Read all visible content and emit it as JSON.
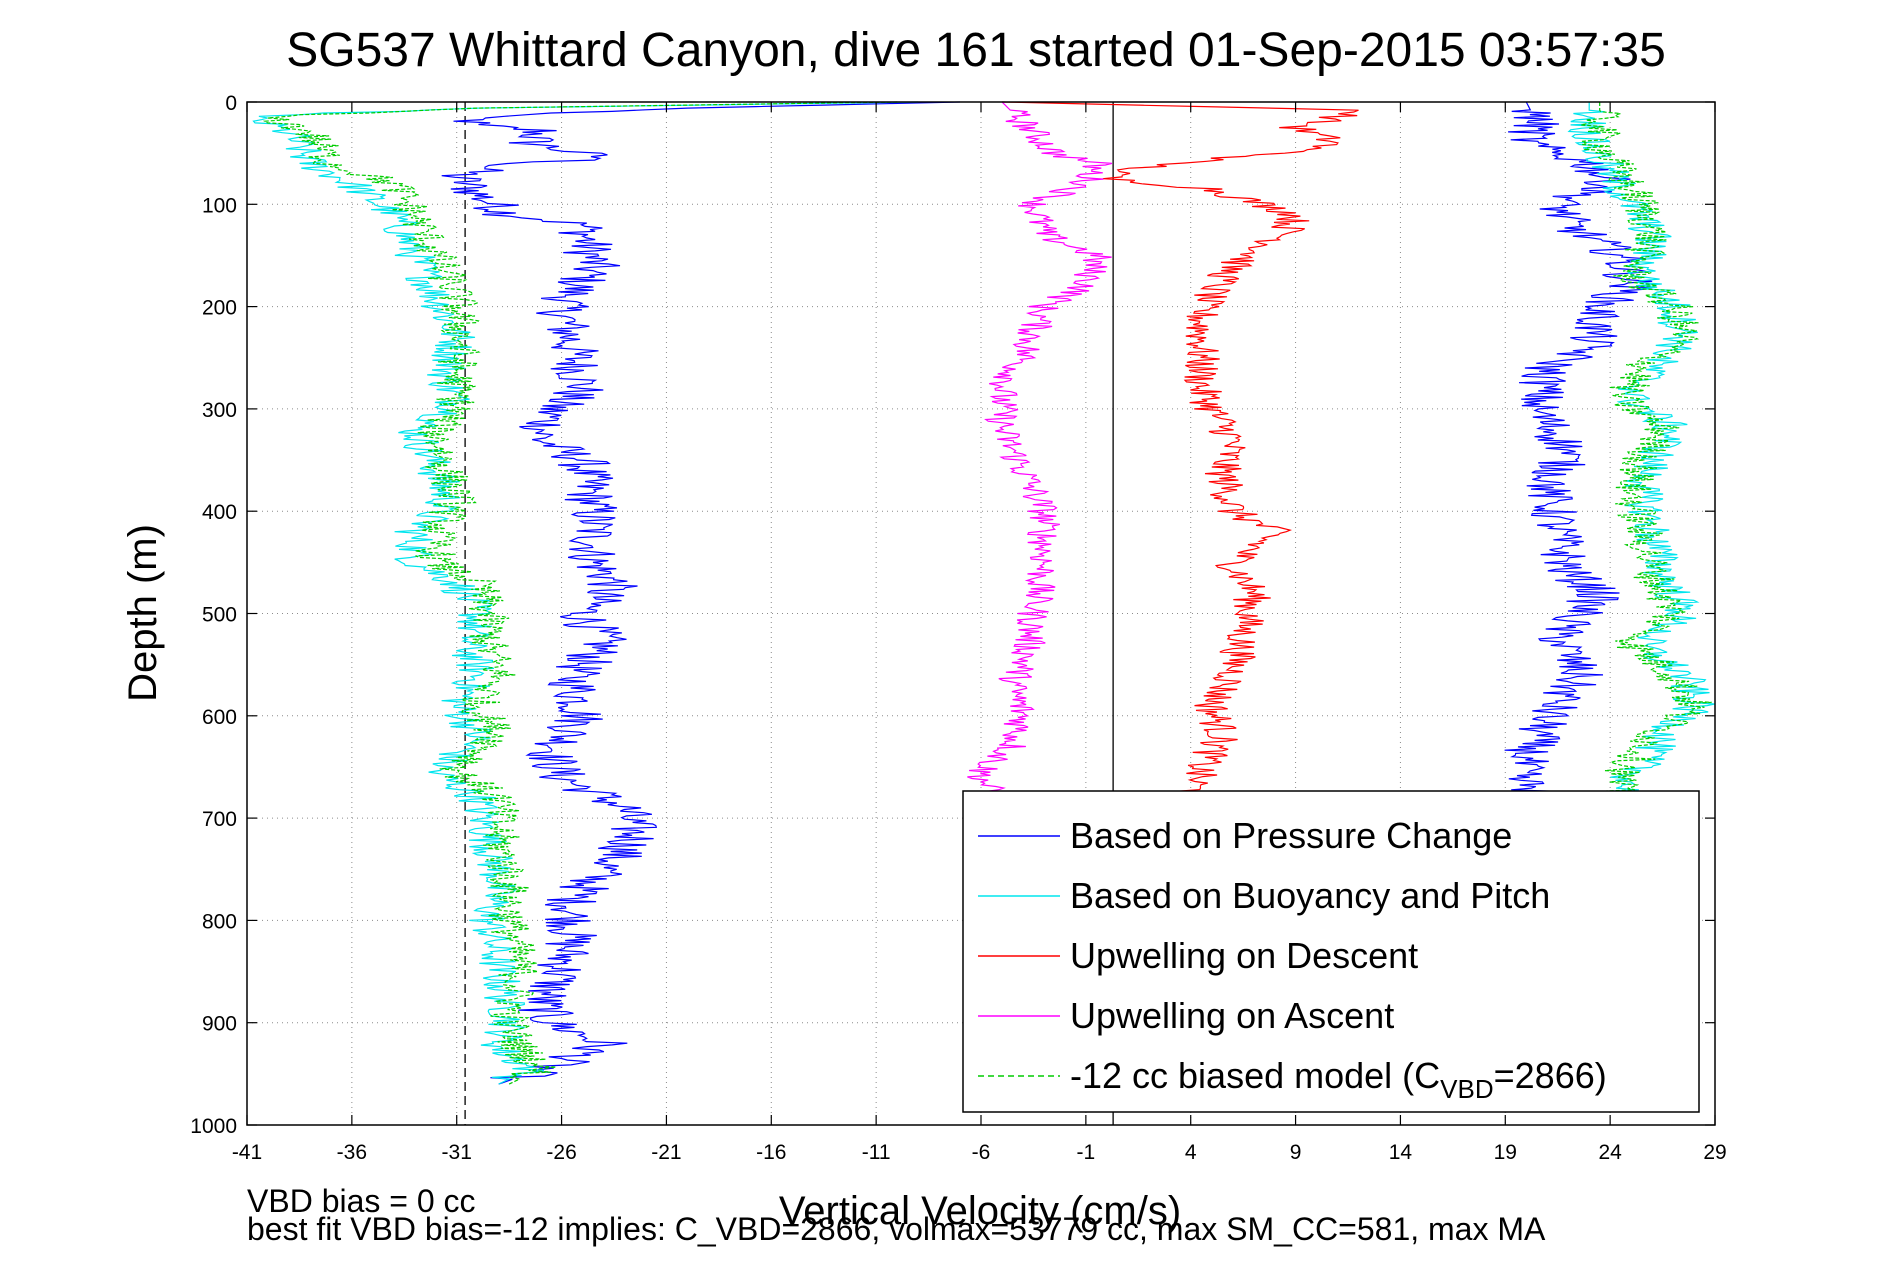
{
  "chart_data": {
    "type": "line",
    "title": "SG537 Whittard Canyon, dive 161 started 01-Sep-2015 03:57:35",
    "xlabel": "Vertical Velocity (cm/s)",
    "ylabel": "Depth (m)",
    "xlim": [
      -41,
      29
    ],
    "ylim": [
      0,
      1000
    ],
    "y_reversed": true,
    "grid": true,
    "legend_position": "bottom-right",
    "x_ticks": [
      "-41",
      "-36",
      "-31",
      "-26",
      "-21",
      "-16",
      "-11",
      "-6",
      "-1",
      "4",
      "9",
      "14",
      "19",
      "24",
      "29"
    ],
    "y_ticks": [
      "0",
      "100",
      "200",
      "300",
      "400",
      "500",
      "600",
      "700",
      "800",
      "900",
      "1000"
    ],
    "reference_lines": [
      {
        "style": "dashed",
        "x": -30.6
      },
      {
        "style": "solid",
        "x": 0.3
      }
    ],
    "series": [
      {
        "name": "Based on Pressure Change",
        "color": "#0000ff",
        "noise": 1.3,
        "segment": "descent",
        "points": [
          [
            -7,
            0
          ],
          [
            -20,
            6
          ],
          [
            -30,
            14
          ],
          [
            -30.5,
            22
          ],
          [
            -27,
            28
          ],
          [
            -27.5,
            40
          ],
          [
            -24,
            55
          ],
          [
            -29,
            62
          ],
          [
            -31,
            72
          ],
          [
            -30,
            90
          ],
          [
            -28.5,
            110
          ],
          [
            -25,
            120
          ],
          [
            -24.5,
            160
          ],
          [
            -26,
            200
          ],
          [
            -25.5,
            240
          ],
          [
            -25,
            280
          ],
          [
            -26.5,
            300
          ],
          [
            -27,
            330
          ],
          [
            -25,
            350
          ],
          [
            -24.5,
            400
          ],
          [
            -24.5,
            450
          ],
          [
            -23.5,
            470
          ],
          [
            -25,
            500
          ],
          [
            -24,
            530
          ],
          [
            -25.5,
            560
          ],
          [
            -25,
            600
          ],
          [
            -26.5,
            640
          ],
          [
            -26,
            660
          ],
          [
            -23,
            690
          ],
          [
            -22.5,
            720
          ],
          [
            -24,
            750
          ],
          [
            -25.5,
            780
          ],
          [
            -25.5,
            810
          ],
          [
            -26,
            850
          ],
          [
            -27,
            880
          ],
          [
            -26.5,
            900
          ],
          [
            -24,
            920
          ],
          [
            -25.5,
            935
          ],
          [
            -29,
            960
          ]
        ]
      },
      {
        "name": "Based on Buoyancy and Pitch",
        "color": "#00e5ee",
        "noise": 1.0,
        "segment": "descent",
        "points": [
          [
            -9,
            0
          ],
          [
            -30,
            6
          ],
          [
            -41,
            14
          ],
          [
            -39,
            30
          ],
          [
            -38,
            60
          ],
          [
            -36,
            80
          ],
          [
            -34,
            110
          ],
          [
            -33,
            150
          ],
          [
            -32,
            190
          ],
          [
            -31,
            230
          ],
          [
            -31.5,
            270
          ],
          [
            -31,
            300
          ],
          [
            -33,
            320
          ],
          [
            -32,
            360
          ],
          [
            -31.5,
            390
          ],
          [
            -33,
            420
          ],
          [
            -33,
            450
          ],
          [
            -31,
            470
          ],
          [
            -30,
            500
          ],
          [
            -30.5,
            530
          ],
          [
            -30,
            560
          ],
          [
            -31,
            590
          ],
          [
            -30,
            620
          ],
          [
            -32,
            655
          ],
          [
            -30,
            680
          ],
          [
            -29.5,
            720
          ],
          [
            -29,
            760
          ],
          [
            -29.5,
            800
          ],
          [
            -29,
            850
          ],
          [
            -28.5,
            900
          ],
          [
            -29,
            925
          ],
          [
            -27.5,
            945
          ],
          [
            -29,
            960
          ]
        ]
      },
      {
        "name": "Upwelling on Descent",
        "color": "#ff0000",
        "noise": 0.9,
        "segment": "descent",
        "points": [
          [
            -5,
            0
          ],
          [
            12,
            8
          ],
          [
            11,
            15
          ],
          [
            9,
            25
          ],
          [
            11,
            40
          ],
          [
            8.5,
            50
          ],
          [
            4,
            58
          ],
          [
            0.5,
            68
          ],
          [
            0,
            75
          ],
          [
            5,
            85
          ],
          [
            9,
            110
          ],
          [
            8.5,
            130
          ],
          [
            6,
            160
          ],
          [
            4.5,
            200
          ],
          [
            4.5,
            240
          ],
          [
            4.5,
            280
          ],
          [
            5,
            300
          ],
          [
            6,
            330
          ],
          [
            5.5,
            360
          ],
          [
            6,
            400
          ],
          [
            8,
            420
          ],
          [
            6,
            450
          ],
          [
            7,
            480
          ],
          [
            6.5,
            520
          ],
          [
            6,
            560
          ],
          [
            5,
            590
          ],
          [
            5.5,
            620
          ],
          [
            4.5,
            650
          ],
          [
            4,
            680
          ]
        ]
      },
      {
        "name": "Upwelling on Ascent",
        "color": "#ff00ff",
        "noise": 0.8,
        "segment": "ascent",
        "points": [
          [
            -5,
            0
          ],
          [
            -3.5,
            30
          ],
          [
            -2.5,
            50
          ],
          [
            -0.5,
            60
          ],
          [
            -1,
            80
          ],
          [
            -3.5,
            100
          ],
          [
            -3,
            130
          ],
          [
            -0.5,
            150
          ],
          [
            -1,
            180
          ],
          [
            -3,
            200
          ],
          [
            -4,
            250
          ],
          [
            -5,
            280
          ],
          [
            -5,
            320
          ],
          [
            -4,
            360
          ],
          [
            -3,
            400
          ],
          [
            -3,
            450
          ],
          [
            -3.5,
            500
          ],
          [
            -3.8,
            540
          ],
          [
            -4.5,
            570
          ],
          [
            -4,
            600
          ],
          [
            -4.5,
            630
          ],
          [
            -6,
            655
          ],
          [
            -5.5,
            680
          ]
        ]
      },
      {
        "name": "Based on Pressure Change",
        "color": "#0000ff",
        "noise": 1.2,
        "segment": "ascent",
        "points": [
          [
            20,
            0
          ],
          [
            20.5,
            20
          ],
          [
            20,
            40
          ],
          [
            23,
            60
          ],
          [
            24,
            80
          ],
          [
            21.5,
            100
          ],
          [
            22,
            120
          ],
          [
            24.5,
            150
          ],
          [
            25,
            180
          ],
          [
            23.5,
            200
          ],
          [
            23,
            240
          ],
          [
            21,
            260
          ],
          [
            20.5,
            300
          ],
          [
            22,
            340
          ],
          [
            21,
            380
          ],
          [
            21.5,
            420
          ],
          [
            22,
            460
          ],
          [
            23.5,
            480
          ],
          [
            21.5,
            520
          ],
          [
            22.5,
            560
          ],
          [
            21,
            600
          ],
          [
            20,
            640
          ],
          [
            19.5,
            660
          ],
          [
            21,
            680
          ]
        ]
      },
      {
        "name": "-12 cc biased model (CVBD=2866)",
        "color": "#00cc00",
        "noise": 1.0,
        "segment": "descent",
        "points": [
          [
            -10,
            0
          ],
          [
            -30,
            6
          ],
          [
            -40,
            14
          ],
          [
            -38,
            30
          ],
          [
            -37,
            60
          ],
          [
            -34,
            80
          ],
          [
            -33,
            110
          ],
          [
            -32,
            150
          ],
          [
            -31,
            190
          ],
          [
            -30.8,
            230
          ],
          [
            -31,
            270
          ],
          [
            -31,
            300
          ],
          [
            -32,
            320
          ],
          [
            -31.5,
            360
          ],
          [
            -31,
            390
          ],
          [
            -32,
            420
          ],
          [
            -32,
            450
          ],
          [
            -30,
            470
          ],
          [
            -29.5,
            500
          ],
          [
            -29.5,
            530
          ],
          [
            -29,
            560
          ],
          [
            -30,
            590
          ],
          [
            -29,
            620
          ],
          [
            -31,
            655
          ],
          [
            -29,
            680
          ],
          [
            -29,
            720
          ],
          [
            -28.5,
            760
          ],
          [
            -28.5,
            800
          ],
          [
            -28,
            850
          ],
          [
            -28.5,
            900
          ],
          [
            -28,
            925
          ],
          [
            -27,
            945
          ],
          [
            -28.5,
            960
          ]
        ]
      },
      {
        "name": "Based on Buoyancy and Pitch",
        "color": "#00e5ee",
        "noise": 1.0,
        "segment": "ascent",
        "points": [
          [
            23,
            0
          ],
          [
            23,
            40
          ],
          [
            24,
            70
          ],
          [
            25,
            100
          ],
          [
            26,
            130
          ],
          [
            25.5,
            170
          ],
          [
            27,
            200
          ],
          [
            27.5,
            230
          ],
          [
            26,
            260
          ],
          [
            25,
            290
          ],
          [
            27,
            320
          ],
          [
            26,
            350
          ],
          [
            25.5,
            380
          ],
          [
            26,
            420
          ],
          [
            26.5,
            460
          ],
          [
            27.5,
            500
          ],
          [
            25.5,
            530
          ],
          [
            27.5,
            560
          ],
          [
            28,
            590
          ],
          [
            26.5,
            620
          ],
          [
            25,
            660
          ],
          [
            24.5,
            680
          ]
        ]
      },
      {
        "name": "-12 cc biased model (CVBD=2866)",
        "color": "#00cc00",
        "noise": 1.0,
        "segment": "ascent",
        "points": [
          [
            23.5,
            0
          ],
          [
            23.5,
            40
          ],
          [
            24.5,
            70
          ],
          [
            25.5,
            100
          ],
          [
            26,
            130
          ],
          [
            25,
            170
          ],
          [
            27,
            200
          ],
          [
            27.5,
            230
          ],
          [
            25.5,
            260
          ],
          [
            24.5,
            290
          ],
          [
            26.5,
            320
          ],
          [
            25.5,
            350
          ],
          [
            25,
            380
          ],
          [
            25.5,
            420
          ],
          [
            26,
            460
          ],
          [
            27,
            500
          ],
          [
            25,
            530
          ],
          [
            27,
            560
          ],
          [
            28,
            590
          ],
          [
            26,
            620
          ],
          [
            24.5,
            660
          ],
          [
            24,
            680
          ]
        ]
      }
    ],
    "legend": [
      {
        "label": "Based on Pressure Change",
        "color": "#0000ff",
        "style": "solid"
      },
      {
        "label": "Based on Buoyancy and Pitch",
        "color": "#00e5ee",
        "style": "solid"
      },
      {
        "label": "Upwelling on Descent",
        "color": "#ff0000",
        "style": "solid"
      },
      {
        "label": "Upwelling on Ascent",
        "color": "#ff00ff",
        "style": "solid"
      },
      {
        "label": "-12 cc biased model (C",
        "sub": "VBD",
        "suffix": "=2866)",
        "color": "#00cc00",
        "style": "dashed"
      }
    ],
    "footer": [
      "VBD bias = 0 cc",
      "best fit VBD bias=-12 implies: C_VBD=2866, volmax=53779 cc, max SM_CC=581, max MA"
    ]
  }
}
